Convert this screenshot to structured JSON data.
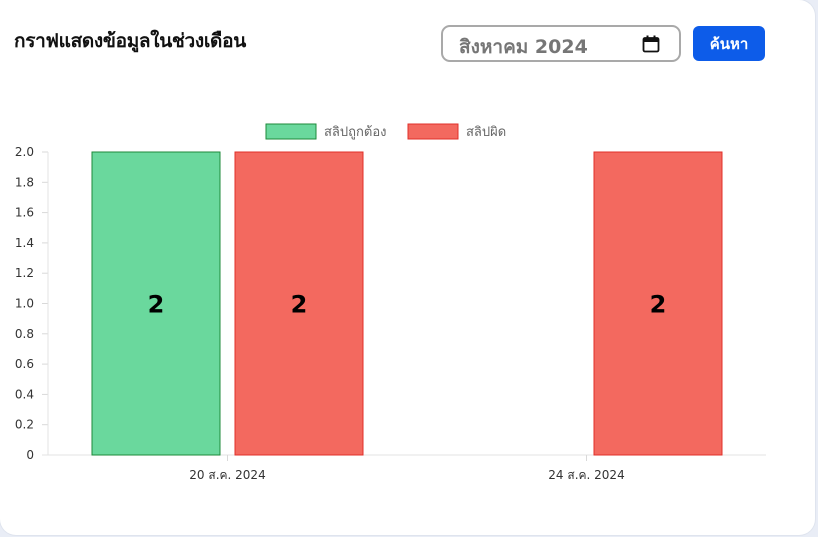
{
  "header": {
    "title": "กราฟแสดงข้อมูลในช่วงเดือน",
    "month_value": "สิงหาคม 2024",
    "search_label": "ค้นหา"
  },
  "colors": {
    "correct_fill": "#6ad89d",
    "correct_stroke": "#1e8a3a",
    "wrong_fill": "#f3695f",
    "wrong_stroke": "#e0302a",
    "button": "#0d5ce9"
  },
  "chart_data": {
    "type": "bar",
    "categories": [
      "20 ส.ค. 2024",
      "24 ส.ค. 2024"
    ],
    "series": [
      {
        "name": "สลิปถูกต้อง",
        "values": [
          2,
          0
        ]
      },
      {
        "name": "สลิปผิด",
        "values": [
          2,
          2
        ]
      }
    ],
    "data_labels": [
      [
        "2",
        ""
      ],
      [
        "2",
        "2"
      ]
    ],
    "yticks": [
      "0",
      "0.2",
      "0.4",
      "0.6",
      "0.8",
      "1.0",
      "1.2",
      "1.4",
      "1.6",
      "1.8",
      "2.0"
    ],
    "ylim": [
      0,
      2
    ],
    "legend_position": "top",
    "grid": false
  }
}
